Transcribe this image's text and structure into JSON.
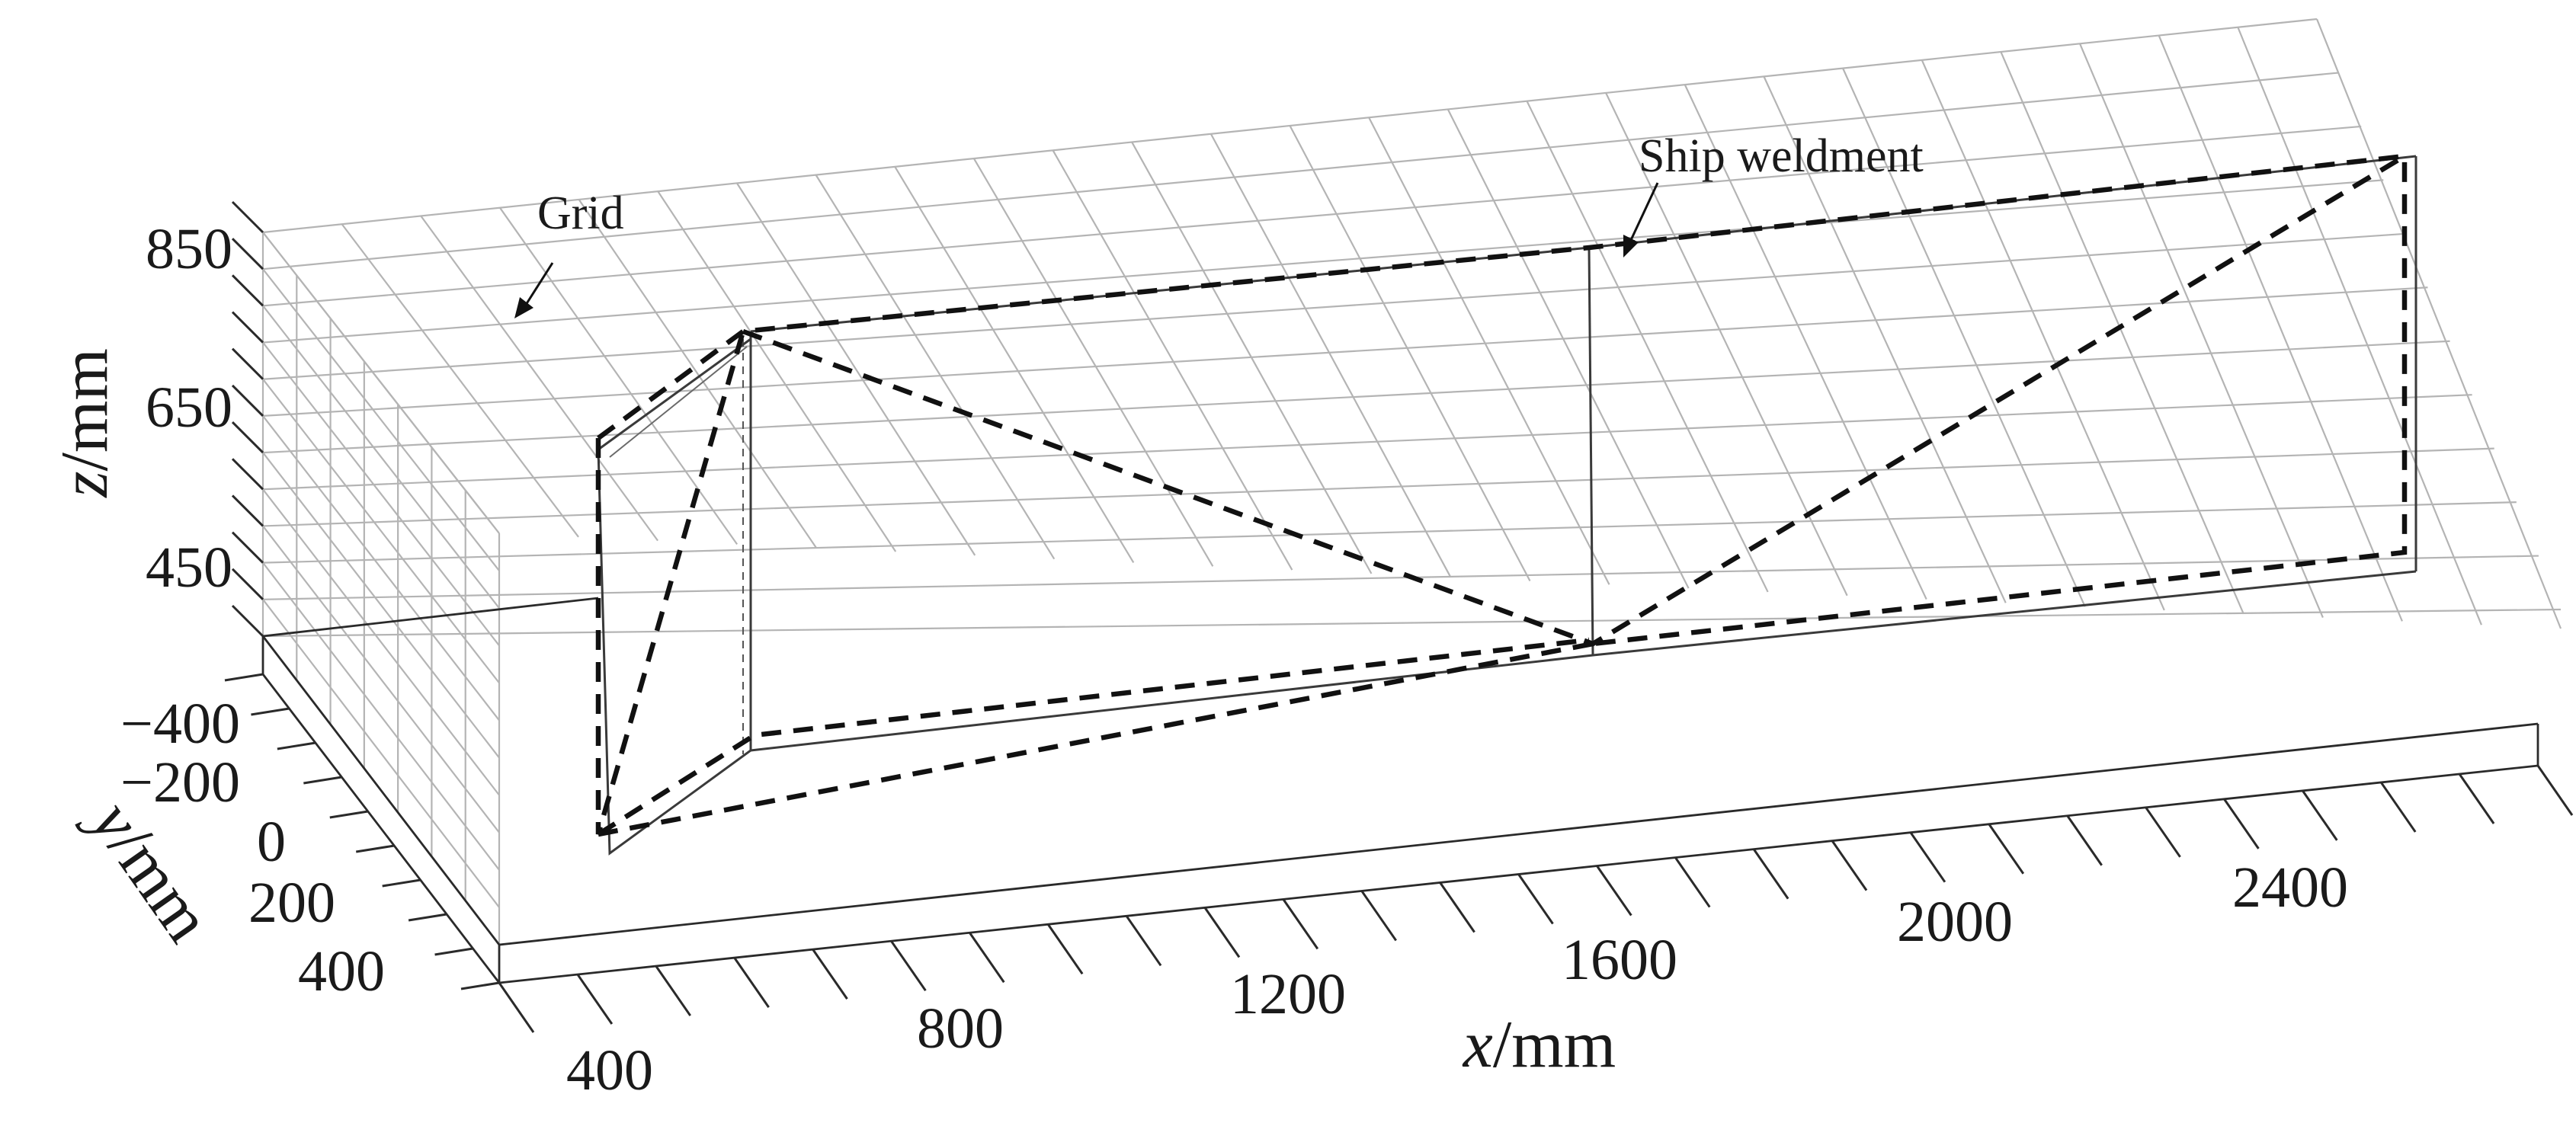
{
  "diagram": {
    "annotations": {
      "grid": "Grid",
      "weldment": "Ship weldment"
    },
    "axes": {
      "x": {
        "var": "x",
        "unit": "/mm",
        "ticks": [
          "400",
          "800",
          "1200",
          "1600",
          "2000",
          "2400"
        ]
      },
      "y": {
        "var": "y",
        "unit": "/mm",
        "ticks": [
          "−400",
          "−200",
          "0",
          "200",
          "400"
        ]
      },
      "z": {
        "var": "z",
        "unit": "/mm",
        "ticks": [
          "850",
          "650",
          "450"
        ]
      }
    }
  }
}
